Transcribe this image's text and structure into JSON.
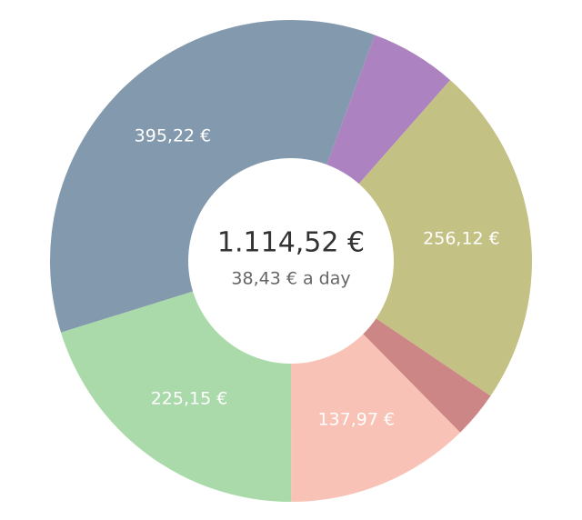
{
  "chart_data": {
    "type": "donut",
    "values": [
      395.22,
      65.0,
      256.12,
      35.06,
      137.97,
      225.15
    ],
    "value_labels": [
      "395,22 €",
      null,
      "256,12 €",
      null,
      "137,97 €",
      "225,15 €"
    ],
    "colors": [
      "#8399ad",
      "#ad82c0",
      "#c4c185",
      "#cd8686",
      "#f8c2b6",
      "#aadaa9"
    ],
    "center_label": "1.114,52 €",
    "center_sublabel": "38,43 € a day"
  }
}
